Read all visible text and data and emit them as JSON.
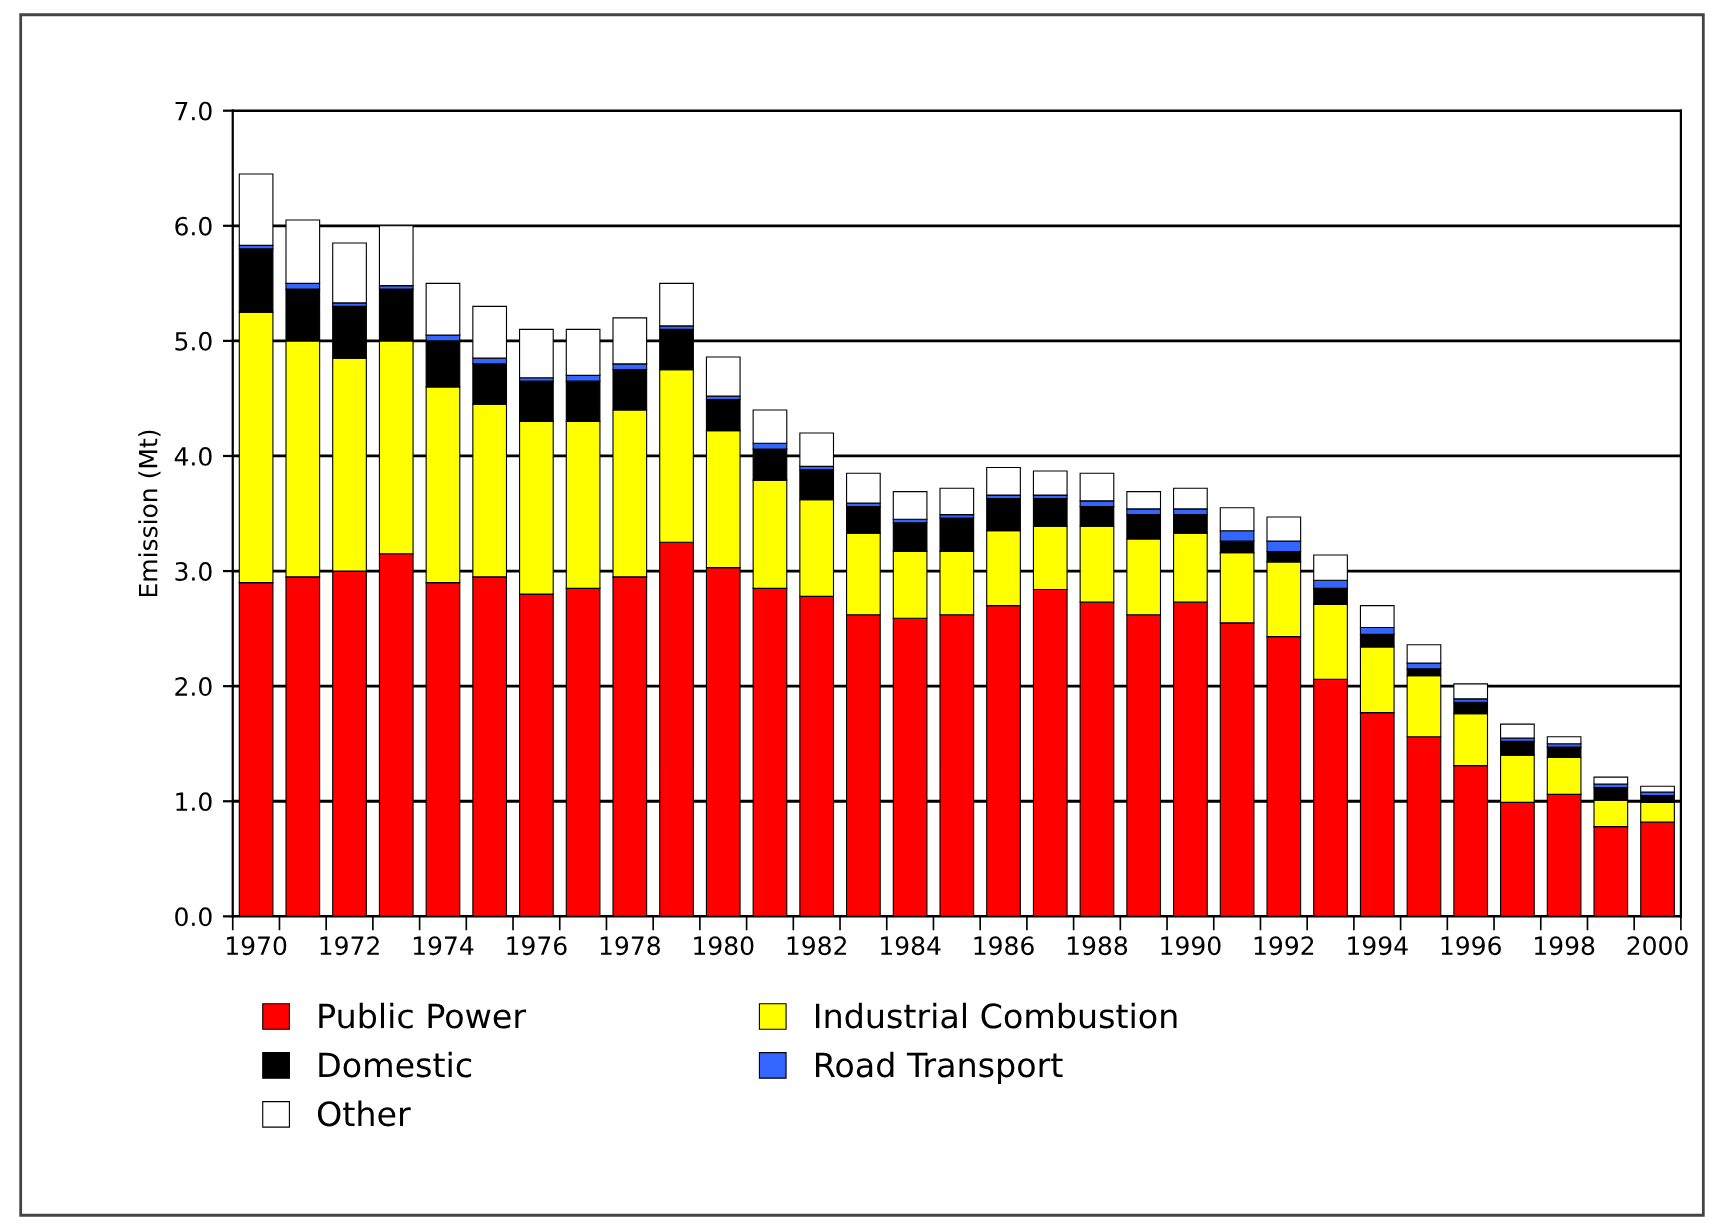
{
  "chart_data": {
    "type": "bar",
    "stacked": true,
    "ylabel": "Emission (Mt)",
    "categories": [
      "1970",
      null,
      "1972",
      null,
      "1974",
      null,
      "1976",
      null,
      "1978",
      null,
      "1980",
      null,
      "1982",
      null,
      "1984",
      null,
      "1986",
      null,
      "1988",
      null,
      "1990",
      null,
      "1992",
      null,
      "1994",
      null,
      "1996",
      null,
      "1998",
      null,
      "2000"
    ],
    "series": [
      {
        "name": "Public Power",
        "color": "#ff0000",
        "values": [
          2.9,
          2.95,
          3.0,
          3.15,
          2.9,
          2.95,
          2.8,
          2.85,
          2.95,
          3.25,
          3.03,
          2.85,
          2.78,
          2.62,
          2.59,
          2.62,
          2.7,
          2.84,
          2.73,
          2.62,
          2.73,
          2.55,
          2.43,
          2.06,
          1.77,
          1.56,
          1.31,
          0.99,
          1.06,
          0.78,
          0.82
        ]
      },
      {
        "name": "Industrial Combustion",
        "color": "#ffff00",
        "values": [
          2.35,
          2.05,
          1.85,
          1.85,
          1.7,
          1.5,
          1.5,
          1.45,
          1.45,
          1.5,
          1.19,
          0.94,
          0.84,
          0.71,
          0.58,
          0.55,
          0.65,
          0.55,
          0.66,
          0.66,
          0.6,
          0.61,
          0.65,
          0.65,
          0.57,
          0.53,
          0.45,
          0.41,
          0.32,
          0.23,
          0.17
        ]
      },
      {
        "name": "Domestic",
        "color": "#000000",
        "values": [
          0.55,
          0.45,
          0.45,
          0.45,
          0.4,
          0.35,
          0.35,
          0.35,
          0.35,
          0.35,
          0.27,
          0.27,
          0.26,
          0.23,
          0.25,
          0.29,
          0.28,
          0.24,
          0.17,
          0.21,
          0.16,
          0.1,
          0.09,
          0.14,
          0.11,
          0.06,
          0.1,
          0.12,
          0.09,
          0.11,
          0.06
        ]
      },
      {
        "name": "Road Transport",
        "color": "#3366ff",
        "values": [
          0.03,
          0.05,
          0.03,
          0.03,
          0.05,
          0.05,
          0.03,
          0.05,
          0.05,
          0.03,
          0.03,
          0.05,
          0.03,
          0.03,
          0.03,
          0.03,
          0.03,
          0.03,
          0.05,
          0.05,
          0.05,
          0.09,
          0.09,
          0.07,
          0.06,
          0.05,
          0.03,
          0.03,
          0.03,
          0.03,
          0.03
        ]
      },
      {
        "name": "Other",
        "color": "#ffffff",
        "values": [
          0.62,
          0.55,
          0.52,
          0.52,
          0.45,
          0.45,
          0.42,
          0.4,
          0.4,
          0.37,
          0.34,
          0.29,
          0.29,
          0.26,
          0.24,
          0.23,
          0.24,
          0.21,
          0.24,
          0.15,
          0.18,
          0.2,
          0.21,
          0.22,
          0.19,
          0.16,
          0.13,
          0.12,
          0.06,
          0.06,
          0.05
        ]
      }
    ],
    "ylim": [
      0,
      7
    ],
    "yticks": [
      {
        "value": 0,
        "label": "0.0"
      },
      {
        "value": 1,
        "label": "1.0"
      },
      {
        "value": 2,
        "label": "2.0"
      },
      {
        "value": 3,
        "label": "3.0"
      },
      {
        "value": 4,
        "label": "4.0"
      },
      {
        "value": 5,
        "label": "5.0"
      },
      {
        "value": 6,
        "label": "6.0"
      },
      {
        "value": 7,
        "label": "7.0"
      }
    ],
    "grid": "y",
    "legend": "bottom"
  }
}
